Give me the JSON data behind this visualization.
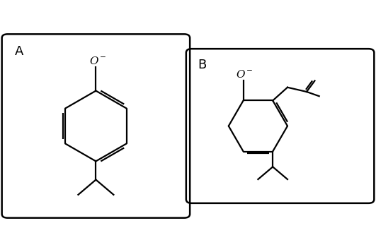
{
  "background_color": "#ffffff",
  "line_color": "#000000",
  "line_width": 1.6,
  "label_A": "A",
  "label_B": "B"
}
